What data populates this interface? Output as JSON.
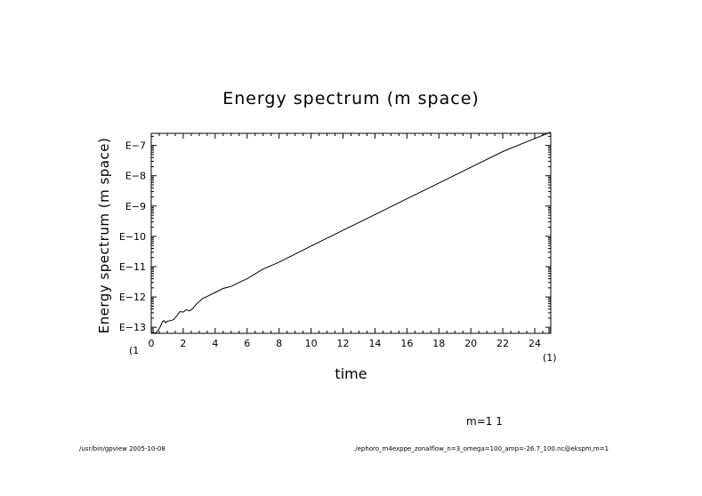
{
  "chart_data": {
    "type": "line",
    "title": "Energy spectrum (m space)",
    "xlabel": "time",
    "ylabel": "Energy spectrum (m space)",
    "x_scale_label": "(1)",
    "y_scale_label": "(1",
    "xlim": [
      0,
      25
    ],
    "ylim": [
      -13.2,
      -6.6
    ],
    "y_scale": "log10",
    "x_ticks": [
      0,
      2,
      4,
      6,
      8,
      10,
      12,
      14,
      16,
      18,
      20,
      22,
      24
    ],
    "x_tick_labels": [
      "0",
      "2",
      "4",
      "6",
      "8",
      "10",
      "12",
      "14",
      "16",
      "18",
      "20",
      "22",
      "24"
    ],
    "y_ticks": [
      -13,
      -12,
      -11,
      -10,
      -9,
      -8,
      -7
    ],
    "y_tick_labels": [
      "E−13",
      "E−12",
      "E−11",
      "E−10",
      "E−9",
      "E−8",
      "E−7"
    ],
    "grid": false,
    "series": [
      {
        "name": "m=1 1",
        "x": [
          0,
          0.3,
          0.5,
          0.7,
          0.8,
          0.9,
          1.0,
          1.2,
          1.4,
          1.6,
          1.8,
          2.0,
          2.2,
          2.4,
          2.6,
          2.8,
          3.0,
          3.2,
          3.5,
          4.0,
          4.5,
          5.0,
          5.5,
          6.0,
          7.0,
          8.0,
          10.0,
          12.0,
          14.0,
          16.0,
          18.0,
          20.0,
          22.0,
          24.0,
          25.0
        ],
        "y": [
          -13.2,
          -13.18,
          -13.05,
          -12.82,
          -12.78,
          -12.85,
          -12.8,
          -12.78,
          -12.75,
          -12.62,
          -12.48,
          -12.5,
          -12.42,
          -12.46,
          -12.38,
          -12.25,
          -12.15,
          -12.06,
          -11.98,
          -11.85,
          -11.72,
          -11.65,
          -11.52,
          -11.4,
          -11.08,
          -10.85,
          -10.32,
          -9.8,
          -9.28,
          -8.76,
          -8.24,
          -7.72,
          -7.2,
          -6.77,
          -6.56
        ]
      }
    ],
    "legend": {
      "text": "m=1 1",
      "position": "bottom-right"
    }
  },
  "footer": {
    "left": "/usr/bin/gpview   2005-10-08",
    "right": "./ephoro_m4exppe_zonalflow_n=3_omega=100_amp=-26.7_100.nc@ekspm,m=1"
  }
}
